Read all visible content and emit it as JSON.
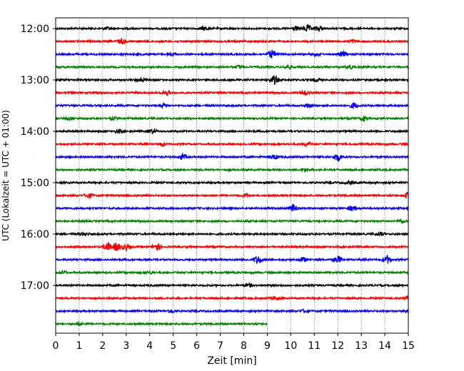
{
  "chart_data": {
    "type": "line",
    "title": "",
    "xlabel": "Zeit  [min]",
    "ylabel": "UTC (Lokalzeit = UTC + 01:00)",
    "xlim": [
      0,
      15
    ],
    "x_ticks": [
      0,
      1,
      2,
      3,
      4,
      5,
      6,
      7,
      8,
      9,
      10,
      11,
      12,
      13,
      14,
      15
    ],
    "y_tick_labels": [
      "12:00",
      "13:00",
      "14:00",
      "15:00",
      "16:00",
      "17:00"
    ],
    "grid": "vertical dotted",
    "trace_colors": [
      "#000000",
      "#ff0000",
      "#0000ff",
      "#008000"
    ],
    "traces_per_hour": 4,
    "first_trace_utc": "12:00",
    "trace_minutes": 15,
    "last_trace_end_minute": 9,
    "series": [
      {
        "start": "12:00",
        "color": "#000000",
        "x_end": 15,
        "events": [
          [
            2.2,
            0.3
          ],
          [
            6.3,
            0.4
          ],
          [
            10.2,
            0.5
          ],
          [
            10.7,
            0.8
          ],
          [
            11.2,
            0.6
          ]
        ]
      },
      {
        "start": "12:15",
        "color": "#ff0000",
        "x_end": 15,
        "events": [
          [
            2.8,
            0.6
          ],
          [
            12.6,
            0.4
          ]
        ]
      },
      {
        "start": "12:30",
        "color": "#0000ff",
        "x_end": 15,
        "events": [
          [
            4.9,
            0.4
          ],
          [
            9.2,
            0.9
          ],
          [
            12.2,
            0.6
          ],
          [
            11.1,
            0.4
          ]
        ]
      },
      {
        "start": "12:45",
        "color": "#008000",
        "x_end": 15,
        "events": [
          [
            7.8,
            0.4
          ],
          [
            9.9,
            0.4
          ],
          [
            12.5,
            0.4
          ]
        ]
      },
      {
        "start": "13:00",
        "color": "#000000",
        "x_end": 15,
        "events": [
          [
            3.6,
            0.5
          ],
          [
            9.3,
            1.0
          ],
          [
            11.1,
            0.4
          ]
        ]
      },
      {
        "start": "13:15",
        "color": "#ff0000",
        "x_end": 15,
        "events": [
          [
            4.7,
            0.5
          ],
          [
            10.6,
            0.6
          ]
        ]
      },
      {
        "start": "13:30",
        "color": "#0000ff",
        "x_end": 15,
        "events": [
          [
            4.6,
            0.4
          ],
          [
            10.8,
            0.5
          ],
          [
            12.7,
            0.7
          ]
        ]
      },
      {
        "start": "13:45",
        "color": "#008000",
        "x_end": 15,
        "events": [
          [
            0.6,
            0.3
          ],
          [
            2.5,
            0.3
          ],
          [
            13.1,
            0.5
          ]
        ]
      },
      {
        "start": "14:00",
        "color": "#000000",
        "x_end": 15,
        "events": [
          [
            2.7,
            0.4
          ],
          [
            4.1,
            0.5
          ]
        ]
      },
      {
        "start": "14:15",
        "color": "#ff0000",
        "x_end": 15,
        "events": [
          [
            4.5,
            0.4
          ],
          [
            10.7,
            0.4
          ]
        ]
      },
      {
        "start": "14:30",
        "color": "#0000ff",
        "x_end": 15,
        "events": [
          [
            5.4,
            0.6
          ],
          [
            9.3,
            0.5
          ],
          [
            12.0,
            0.9
          ]
        ]
      },
      {
        "start": "14:45",
        "color": "#008000",
        "x_end": 15,
        "events": [
          [
            10.6,
            0.4
          ]
        ]
      },
      {
        "start": "15:00",
        "color": "#000000",
        "x_end": 15,
        "events": [
          [
            12.5,
            0.4
          ]
        ]
      },
      {
        "start": "15:15",
        "color": "#ff0000",
        "x_end": 15,
        "events": [
          [
            1.4,
            0.6
          ],
          [
            8.1,
            0.4
          ],
          [
            15.0,
            0.8
          ]
        ]
      },
      {
        "start": "15:30",
        "color": "#0000ff",
        "x_end": 15,
        "events": [
          [
            10.1,
            0.9
          ],
          [
            12.6,
            0.6
          ]
        ]
      },
      {
        "start": "15:45",
        "color": "#008000",
        "x_end": 15,
        "events": [
          [
            14.7,
            0.3
          ]
        ]
      },
      {
        "start": "16:00",
        "color": "#000000",
        "x_end": 15,
        "events": [
          [
            1.2,
            0.4
          ],
          [
            13.8,
            0.4
          ]
        ]
      },
      {
        "start": "16:15",
        "color": "#ff0000",
        "x_end": 15,
        "events": [
          [
            2.2,
            1.0
          ],
          [
            2.6,
            1.0
          ],
          [
            3.0,
            0.7
          ],
          [
            4.3,
            0.9
          ]
        ]
      },
      {
        "start": "16:30",
        "color": "#0000ff",
        "x_end": 15,
        "events": [
          [
            8.6,
            1.0
          ],
          [
            10.5,
            0.6
          ],
          [
            12.0,
            0.8
          ],
          [
            14.1,
            0.9
          ]
        ]
      },
      {
        "start": "16:45",
        "color": "#008000",
        "x_end": 15,
        "events": [
          [
            0.3,
            0.3
          ],
          [
            4.0,
            0.3
          ]
        ]
      },
      {
        "start": "17:00",
        "color": "#000000",
        "x_end": 15,
        "events": [
          [
            8.2,
            0.4
          ]
        ]
      },
      {
        "start": "17:15",
        "color": "#ff0000",
        "x_end": 15,
        "events": [
          [
            9.4,
            0.4
          ],
          [
            15.0,
            0.6
          ]
        ]
      },
      {
        "start": "17:30",
        "color": "#0000ff",
        "x_end": 15,
        "events": [
          [
            4.9,
            0.4
          ],
          [
            10.6,
            0.4
          ],
          [
            15.0,
            0.4
          ]
        ]
      },
      {
        "start": "17:45",
        "color": "#008000",
        "x_end": 9,
        "events": [
          [
            1.0,
            0.3
          ]
        ]
      }
    ]
  }
}
